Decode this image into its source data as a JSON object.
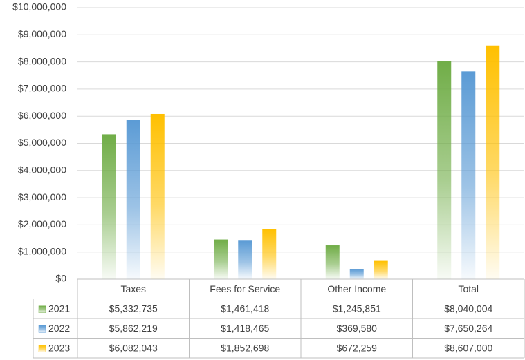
{
  "chart_data": {
    "type": "bar",
    "categories": [
      "Taxes",
      "Fees for Service",
      "Other Income",
      "Total"
    ],
    "series": [
      {
        "name": "2021",
        "color": "#70ad47",
        "values": [
          5332735,
          1461418,
          1245851,
          8040004
        ],
        "value_labels": [
          "$5,332,735",
          "$1,461,418",
          "$1,245,851",
          "$8,040,004"
        ]
      },
      {
        "name": "2022",
        "color": "#5b9bd5",
        "values": [
          5862219,
          1418465,
          369580,
          7650264
        ],
        "value_labels": [
          "$5,862,219",
          "$1,418,465",
          "$369,580",
          "$7,650,264"
        ]
      },
      {
        "name": "2023",
        "color": "#ffc000",
        "values": [
          6082043,
          1852698,
          672259,
          8607000
        ],
        "value_labels": [
          "$6,082,043",
          "$1,852,698",
          "$672,259",
          "$8,607,000"
        ]
      }
    ],
    "ylim": [
      0,
      10000000
    ],
    "yticks": [
      {
        "value": 0,
        "label": "$0"
      },
      {
        "value": 1000000,
        "label": "$1,000,000"
      },
      {
        "value": 2000000,
        "label": "$2,000,000"
      },
      {
        "value": 3000000,
        "label": "$3,000,000"
      },
      {
        "value": 4000000,
        "label": "$4,000,000"
      },
      {
        "value": 5000000,
        "label": "$5,000,000"
      },
      {
        "value": 6000000,
        "label": "$6,000,000"
      },
      {
        "value": 7000000,
        "label": "$7,000,000"
      },
      {
        "value": 8000000,
        "label": "$8,000,000"
      },
      {
        "value": 9000000,
        "label": "$9,000,000"
      },
      {
        "value": 10000000,
        "label": "$10,000,000"
      }
    ],
    "grid": true
  }
}
